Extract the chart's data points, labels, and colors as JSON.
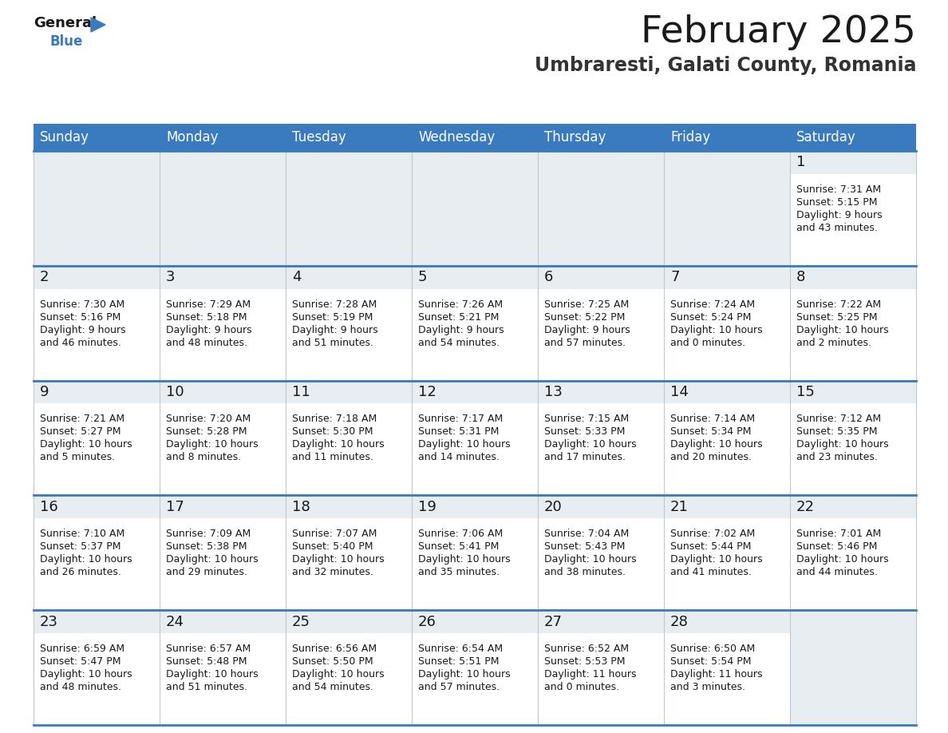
{
  "title": "February 2025",
  "subtitle": "Umbraresti, Galati County, Romania",
  "header_color": "#3a7bbf",
  "header_text_color": "#ffffff",
  "cell_num_bg": "#e8edf2",
  "cell_text_bg": "#ffffff",
  "empty_cell_bg": "#e8edf2",
  "row_sep_color": "#3a7bbf",
  "col_sep_color": "#c0c8d0",
  "day_names": [
    "Sunday",
    "Monday",
    "Tuesday",
    "Wednesday",
    "Thursday",
    "Friday",
    "Saturday"
  ],
  "title_fontsize": 34,
  "subtitle_fontsize": 17,
  "header_fontsize": 12,
  "day_num_fontsize": 13,
  "info_fontsize": 9.0,
  "logo_general_color": "#1a1a1a",
  "logo_blue_color": "#3a7bbf",
  "days": [
    {
      "date": 1,
      "row": 0,
      "col": 6,
      "sunrise": "7:31 AM",
      "sunset": "5:15 PM",
      "daylight": "9 hours and 43 minutes."
    },
    {
      "date": 2,
      "row": 1,
      "col": 0,
      "sunrise": "7:30 AM",
      "sunset": "5:16 PM",
      "daylight": "9 hours and 46 minutes."
    },
    {
      "date": 3,
      "row": 1,
      "col": 1,
      "sunrise": "7:29 AM",
      "sunset": "5:18 PM",
      "daylight": "9 hours and 48 minutes."
    },
    {
      "date": 4,
      "row": 1,
      "col": 2,
      "sunrise": "7:28 AM",
      "sunset": "5:19 PM",
      "daylight": "9 hours and 51 minutes."
    },
    {
      "date": 5,
      "row": 1,
      "col": 3,
      "sunrise": "7:26 AM",
      "sunset": "5:21 PM",
      "daylight": "9 hours and 54 minutes."
    },
    {
      "date": 6,
      "row": 1,
      "col": 4,
      "sunrise": "7:25 AM",
      "sunset": "5:22 PM",
      "daylight": "9 hours and 57 minutes."
    },
    {
      "date": 7,
      "row": 1,
      "col": 5,
      "sunrise": "7:24 AM",
      "sunset": "5:24 PM",
      "daylight": "10 hours and 0 minutes."
    },
    {
      "date": 8,
      "row": 1,
      "col": 6,
      "sunrise": "7:22 AM",
      "sunset": "5:25 PM",
      "daylight": "10 hours and 2 minutes."
    },
    {
      "date": 9,
      "row": 2,
      "col": 0,
      "sunrise": "7:21 AM",
      "sunset": "5:27 PM",
      "daylight": "10 hours and 5 minutes."
    },
    {
      "date": 10,
      "row": 2,
      "col": 1,
      "sunrise": "7:20 AM",
      "sunset": "5:28 PM",
      "daylight": "10 hours and 8 minutes."
    },
    {
      "date": 11,
      "row": 2,
      "col": 2,
      "sunrise": "7:18 AM",
      "sunset": "5:30 PM",
      "daylight": "10 hours and 11 minutes."
    },
    {
      "date": 12,
      "row": 2,
      "col": 3,
      "sunrise": "7:17 AM",
      "sunset": "5:31 PM",
      "daylight": "10 hours and 14 minutes."
    },
    {
      "date": 13,
      "row": 2,
      "col": 4,
      "sunrise": "7:15 AM",
      "sunset": "5:33 PM",
      "daylight": "10 hours and 17 minutes."
    },
    {
      "date": 14,
      "row": 2,
      "col": 5,
      "sunrise": "7:14 AM",
      "sunset": "5:34 PM",
      "daylight": "10 hours and 20 minutes."
    },
    {
      "date": 15,
      "row": 2,
      "col": 6,
      "sunrise": "7:12 AM",
      "sunset": "5:35 PM",
      "daylight": "10 hours and 23 minutes."
    },
    {
      "date": 16,
      "row": 3,
      "col": 0,
      "sunrise": "7:10 AM",
      "sunset": "5:37 PM",
      "daylight": "10 hours and 26 minutes."
    },
    {
      "date": 17,
      "row": 3,
      "col": 1,
      "sunrise": "7:09 AM",
      "sunset": "5:38 PM",
      "daylight": "10 hours and 29 minutes."
    },
    {
      "date": 18,
      "row": 3,
      "col": 2,
      "sunrise": "7:07 AM",
      "sunset": "5:40 PM",
      "daylight": "10 hours and 32 minutes."
    },
    {
      "date": 19,
      "row": 3,
      "col": 3,
      "sunrise": "7:06 AM",
      "sunset": "5:41 PM",
      "daylight": "10 hours and 35 minutes."
    },
    {
      "date": 20,
      "row": 3,
      "col": 4,
      "sunrise": "7:04 AM",
      "sunset": "5:43 PM",
      "daylight": "10 hours and 38 minutes."
    },
    {
      "date": 21,
      "row": 3,
      "col": 5,
      "sunrise": "7:02 AM",
      "sunset": "5:44 PM",
      "daylight": "10 hours and 41 minutes."
    },
    {
      "date": 22,
      "row": 3,
      "col": 6,
      "sunrise": "7:01 AM",
      "sunset": "5:46 PM",
      "daylight": "10 hours and 44 minutes."
    },
    {
      "date": 23,
      "row": 4,
      "col": 0,
      "sunrise": "6:59 AM",
      "sunset": "5:47 PM",
      "daylight": "10 hours and 48 minutes."
    },
    {
      "date": 24,
      "row": 4,
      "col": 1,
      "sunrise": "6:57 AM",
      "sunset": "5:48 PM",
      "daylight": "10 hours and 51 minutes."
    },
    {
      "date": 25,
      "row": 4,
      "col": 2,
      "sunrise": "6:56 AM",
      "sunset": "5:50 PM",
      "daylight": "10 hours and 54 minutes."
    },
    {
      "date": 26,
      "row": 4,
      "col": 3,
      "sunrise": "6:54 AM",
      "sunset": "5:51 PM",
      "daylight": "10 hours and 57 minutes."
    },
    {
      "date": 27,
      "row": 4,
      "col": 4,
      "sunrise": "6:52 AM",
      "sunset": "5:53 PM",
      "daylight": "11 hours and 0 minutes."
    },
    {
      "date": 28,
      "row": 4,
      "col": 5,
      "sunrise": "6:50 AM",
      "sunset": "5:54 PM",
      "daylight": "11 hours and 3 minutes."
    }
  ]
}
